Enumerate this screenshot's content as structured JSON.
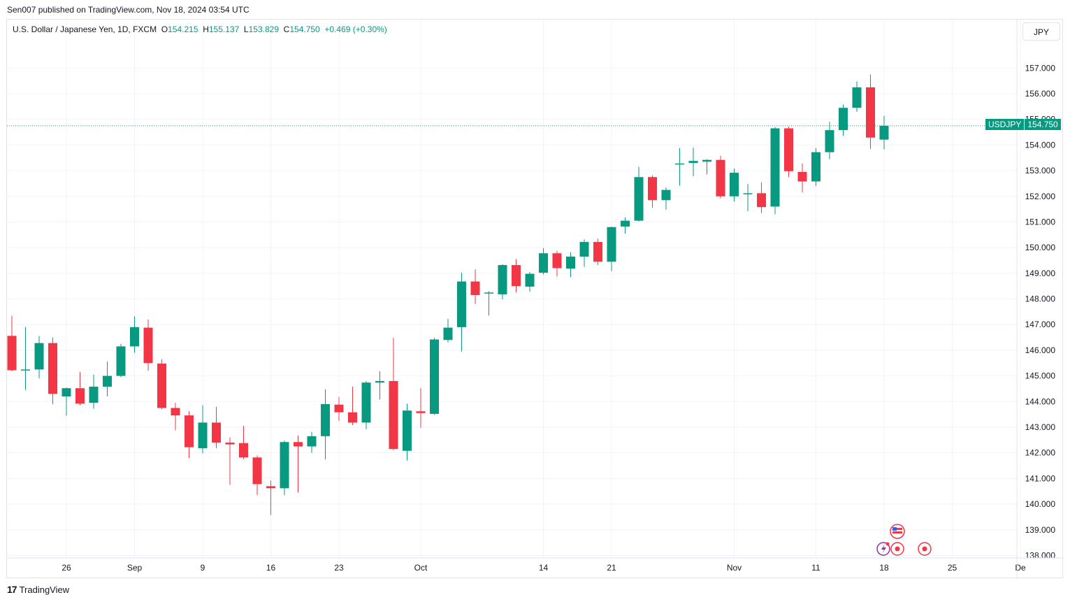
{
  "header": {
    "published_text": "Sen007 published on TradingView.com, Nov 18, 2024 03:54 UTC"
  },
  "legend": {
    "symbol_text": "U.S. Dollar / Japanese Yen, 1D, FXCM",
    "o_label": "O",
    "o_value": "154.215",
    "h_label": "H",
    "h_value": "155.137",
    "l_label": "L",
    "l_value": "153.829",
    "c_label": "C",
    "c_value": "154.750",
    "change": "+0.469 (+0.30%)"
  },
  "currency_button": "JPY",
  "price_tag": {
    "symbol": "USDJPY",
    "price": "154.750"
  },
  "footer": {
    "brand": "TradingView",
    "logo_glyph": "17"
  },
  "colors": {
    "up": "#089981",
    "down": "#f23645",
    "grid": "#f0f3fa",
    "text": "#131722"
  },
  "icons": [
    "us-flag-icon",
    "lightning-icon",
    "event-dot-icon",
    "event-dot-icon",
    "event-dot-icon"
  ],
  "chart_data": {
    "type": "candlestick",
    "x_tick_labels": [
      {
        "label": "26",
        "index": 4
      },
      {
        "label": "Sep",
        "index": 9
      },
      {
        "label": "9",
        "index": 14
      },
      {
        "label": "16",
        "index": 19
      },
      {
        "label": "23",
        "index": 24
      },
      {
        "label": "Oct",
        "index": 30
      },
      {
        "label": "14",
        "index": 39
      },
      {
        "label": "21",
        "index": 44
      },
      {
        "label": "Nov",
        "index": 53
      },
      {
        "label": "11",
        "index": 59
      },
      {
        "label": "18",
        "index": 64
      },
      {
        "label": "25",
        "index": 69
      },
      {
        "label": "De",
        "index": 74
      }
    ],
    "y_ticks": [
      138,
      139,
      140,
      141,
      142,
      143,
      144,
      145,
      146,
      147,
      148,
      149,
      150,
      151,
      152,
      153,
      154,
      155,
      156,
      157
    ],
    "y_tick_labels": [
      "138.000",
      "139.000",
      "140.000",
      "141.000",
      "142.000",
      "143.000",
      "144.000",
      "145.000",
      "146.000",
      "147.000",
      "148.000",
      "149.000",
      "150.000",
      "151.000",
      "152.000",
      "153.000",
      "154.000",
      "155.000",
      "156.000",
      "157.000"
    ],
    "ylim": [
      137.8,
      158.0
    ],
    "last_price": 154.75,
    "candles": [
      {
        "o": 146.56,
        "h": 147.35,
        "l": 145.18,
        "c": 145.22
      },
      {
        "o": 145.25,
        "h": 146.9,
        "l": 144.45,
        "c": 145.25
      },
      {
        "o": 145.25,
        "h": 146.55,
        "l": 144.9,
        "c": 146.28
      },
      {
        "o": 146.28,
        "h": 146.5,
        "l": 143.9,
        "c": 144.3
      },
      {
        "o": 144.2,
        "h": 144.55,
        "l": 143.45,
        "c": 144.52
      },
      {
        "o": 144.52,
        "h": 145.15,
        "l": 143.85,
        "c": 143.92
      },
      {
        "o": 143.95,
        "h": 145.05,
        "l": 143.72,
        "c": 144.58
      },
      {
        "o": 144.58,
        "h": 145.55,
        "l": 144.2,
        "c": 145.0
      },
      {
        "o": 145.0,
        "h": 146.25,
        "l": 144.95,
        "c": 146.15
      },
      {
        "o": 146.15,
        "h": 147.32,
        "l": 145.9,
        "c": 146.9
      },
      {
        "o": 146.88,
        "h": 147.2,
        "l": 145.2,
        "c": 145.5
      },
      {
        "o": 145.48,
        "h": 145.65,
        "l": 143.7,
        "c": 143.75
      },
      {
        "o": 143.75,
        "h": 143.95,
        "l": 142.88,
        "c": 143.46
      },
      {
        "o": 143.46,
        "h": 143.62,
        "l": 141.8,
        "c": 142.22
      },
      {
        "o": 142.18,
        "h": 143.85,
        "l": 141.98,
        "c": 143.18
      },
      {
        "o": 143.18,
        "h": 143.8,
        "l": 142.18,
        "c": 142.4
      },
      {
        "o": 142.4,
        "h": 142.6,
        "l": 140.75,
        "c": 142.33
      },
      {
        "o": 142.38,
        "h": 143.05,
        "l": 141.75,
        "c": 141.82
      },
      {
        "o": 141.82,
        "h": 141.9,
        "l": 140.35,
        "c": 140.78
      },
      {
        "o": 140.7,
        "h": 140.92,
        "l": 139.58,
        "c": 140.62
      },
      {
        "o": 140.62,
        "h": 142.48,
        "l": 140.35,
        "c": 142.42
      },
      {
        "o": 142.42,
        "h": 142.68,
        "l": 140.45,
        "c": 142.25
      },
      {
        "o": 142.25,
        "h": 142.82,
        "l": 142.0,
        "c": 142.65
      },
      {
        "o": 142.65,
        "h": 144.48,
        "l": 141.75,
        "c": 143.9
      },
      {
        "o": 143.88,
        "h": 144.18,
        "l": 143.25,
        "c": 143.58
      },
      {
        "o": 143.58,
        "h": 144.58,
        "l": 143.08,
        "c": 143.18
      },
      {
        "o": 143.18,
        "h": 144.8,
        "l": 142.92,
        "c": 144.74
      },
      {
        "o": 144.74,
        "h": 145.18,
        "l": 144.08,
        "c": 144.8
      },
      {
        "o": 144.8,
        "h": 146.48,
        "l": 142.1,
        "c": 142.15
      },
      {
        "o": 142.08,
        "h": 143.92,
        "l": 141.7,
        "c": 143.65
      },
      {
        "o": 143.62,
        "h": 144.52,
        "l": 142.98,
        "c": 143.55
      },
      {
        "o": 143.52,
        "h": 146.48,
        "l": 143.48,
        "c": 146.42
      },
      {
        "o": 146.4,
        "h": 147.22,
        "l": 146.3,
        "c": 146.88
      },
      {
        "o": 146.9,
        "h": 149.02,
        "l": 145.95,
        "c": 148.68
      },
      {
        "o": 148.68,
        "h": 149.15,
        "l": 147.8,
        "c": 148.15
      },
      {
        "o": 148.22,
        "h": 148.3,
        "l": 147.35,
        "c": 148.25
      },
      {
        "o": 148.18,
        "h": 149.35,
        "l": 147.98,
        "c": 149.32
      },
      {
        "o": 149.32,
        "h": 149.55,
        "l": 148.25,
        "c": 148.5
      },
      {
        "o": 148.48,
        "h": 149.05,
        "l": 148.28,
        "c": 148.98
      },
      {
        "o": 149.02,
        "h": 149.98,
        "l": 148.95,
        "c": 149.78
      },
      {
        "o": 149.78,
        "h": 149.88,
        "l": 148.88,
        "c": 149.2
      },
      {
        "o": 149.18,
        "h": 149.82,
        "l": 148.85,
        "c": 149.65
      },
      {
        "o": 149.65,
        "h": 150.32,
        "l": 149.25,
        "c": 150.22
      },
      {
        "o": 150.22,
        "h": 150.35,
        "l": 149.32,
        "c": 149.45
      },
      {
        "o": 149.45,
        "h": 150.82,
        "l": 149.08,
        "c": 150.8
      },
      {
        "o": 150.82,
        "h": 151.18,
        "l": 150.55,
        "c": 151.05
      },
      {
        "o": 151.05,
        "h": 153.15,
        "l": 151.02,
        "c": 152.75
      },
      {
        "o": 152.75,
        "h": 152.82,
        "l": 151.55,
        "c": 151.85
      },
      {
        "o": 151.85,
        "h": 152.35,
        "l": 151.48,
        "c": 152.25
      },
      {
        "o": 153.25,
        "h": 153.88,
        "l": 152.42,
        "c": 153.28
      },
      {
        "o": 153.3,
        "h": 153.9,
        "l": 152.78,
        "c": 153.38
      },
      {
        "o": 153.35,
        "h": 153.45,
        "l": 152.85,
        "c": 153.42
      },
      {
        "o": 153.42,
        "h": 153.58,
        "l": 151.92,
        "c": 152.0
      },
      {
        "o": 152.0,
        "h": 153.08,
        "l": 151.8,
        "c": 152.92
      },
      {
        "o": 152.1,
        "h": 152.48,
        "l": 151.42,
        "c": 152.12
      },
      {
        "o": 152.12,
        "h": 152.55,
        "l": 151.35,
        "c": 151.58
      },
      {
        "o": 151.6,
        "h": 154.7,
        "l": 151.3,
        "c": 154.65
      },
      {
        "o": 154.65,
        "h": 154.72,
        "l": 152.75,
        "c": 152.98
      },
      {
        "o": 152.95,
        "h": 153.28,
        "l": 152.15,
        "c": 152.58
      },
      {
        "o": 152.58,
        "h": 153.88,
        "l": 152.4,
        "c": 153.72
      },
      {
        "o": 153.72,
        "h": 154.9,
        "l": 153.45,
        "c": 154.58
      },
      {
        "o": 154.58,
        "h": 155.58,
        "l": 154.35,
        "c": 155.45
      },
      {
        "o": 155.45,
        "h": 156.48,
        "l": 155.3,
        "c": 156.25
      },
      {
        "o": 156.25,
        "h": 156.75,
        "l": 153.85,
        "c": 154.29
      },
      {
        "o": 154.21,
        "h": 155.14,
        "l": 153.83,
        "c": 154.75
      }
    ]
  }
}
